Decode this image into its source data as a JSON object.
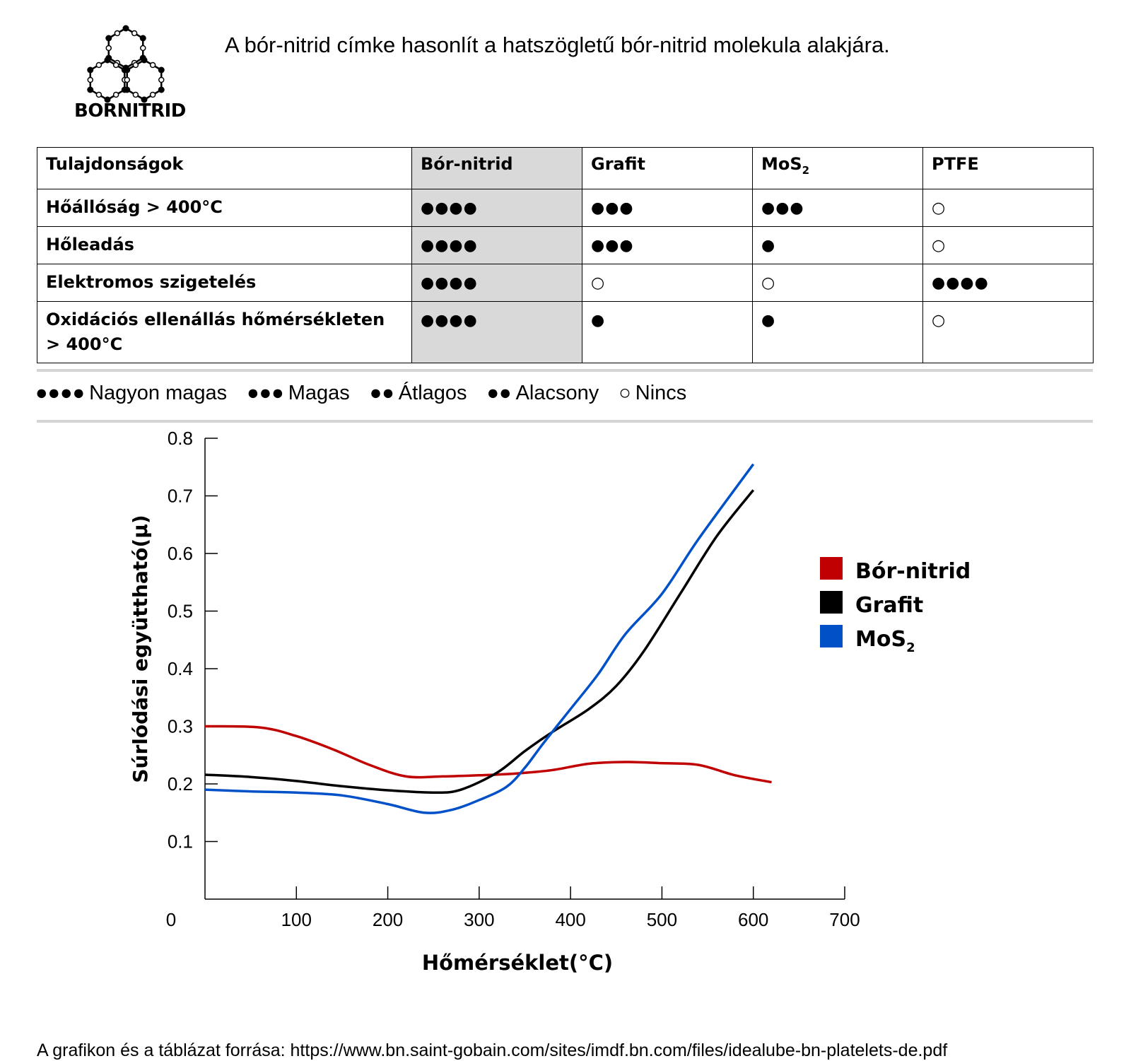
{
  "intro_text": "A bór-nitrid címke hasonlít a hatszögletű bór-nitrid molekula alakjára.",
  "logo_text": "BORNITRID",
  "table": {
    "headers": [
      "Tulajdonságok",
      "Bór-nitrid",
      "Grafit",
      "MoS",
      "PTFE"
    ],
    "header_sub": "2",
    "rows": [
      {
        "label": "Hőállóság > 400°C",
        "values": [
          "●●●●",
          "●●●",
          "●●●",
          "○"
        ]
      },
      {
        "label": "Hőleadás",
        "values": [
          "●●●●",
          "●●●",
          "●",
          "○"
        ]
      },
      {
        "label": "Elektromos szigetelés",
        "values": [
          "●●●●",
          "○",
          "○",
          "●●●●"
        ]
      },
      {
        "label": "Oxidációs ellenállás hőmérsékleten > 400°C",
        "values": [
          "●●●●",
          "●",
          "●",
          "○"
        ]
      }
    ]
  },
  "rating_legend": [
    {
      "symbol": "●●●●",
      "label": "Nagyon magas"
    },
    {
      "symbol": "●●●",
      "label": "Magas"
    },
    {
      "symbol": "●●",
      "label": "Átlagos"
    },
    {
      "symbol": "●●",
      "label": "Alacsony"
    },
    {
      "symbol": "○",
      "label": "Nincs"
    }
  ],
  "chart_data": {
    "type": "line",
    "xlabel": "Hőmérséklet(°C)",
    "ylabel": "Súrlódási együttható(μ)",
    "xlim": [
      0,
      700
    ],
    "ylim": [
      0,
      0.8
    ],
    "x_ticks": [
      0,
      100,
      200,
      300,
      400,
      500,
      600,
      700
    ],
    "y_ticks": [
      "0.1",
      "0.2",
      "0.3",
      "0.4",
      "0.5",
      "0.6",
      "0.7",
      "0.8"
    ],
    "legend_position": "right",
    "series": [
      {
        "name": "Bór-nitrid",
        "sub": "",
        "color": "#c00000",
        "x": [
          0,
          60,
          100,
          140,
          180,
          220,
          260,
          300,
          340,
          380,
          420,
          460,
          500,
          540,
          580,
          620
        ],
        "y": [
          0.3,
          0.298,
          0.283,
          0.26,
          0.233,
          0.213,
          0.213,
          0.215,
          0.218,
          0.224,
          0.235,
          0.238,
          0.236,
          0.233,
          0.215,
          0.203
        ]
      },
      {
        "name": "Grafit",
        "sub": "",
        "color": "#000000",
        "x": [
          0,
          50,
          100,
          150,
          200,
          250,
          280,
          320,
          350,
          380,
          420,
          450,
          480,
          520,
          560,
          600
        ],
        "y": [
          0.216,
          0.212,
          0.205,
          0.196,
          0.189,
          0.185,
          0.19,
          0.22,
          0.257,
          0.29,
          0.33,
          0.37,
          0.43,
          0.53,
          0.63,
          0.71
        ]
      },
      {
        "name": "MoS",
        "sub": "2",
        "color": "#0050c8",
        "x": [
          0,
          50,
          100,
          150,
          200,
          240,
          270,
          300,
          330,
          350,
          370,
          400,
          430,
          460,
          500,
          540,
          600
        ],
        "y": [
          0.19,
          0.187,
          0.185,
          0.18,
          0.165,
          0.15,
          0.155,
          0.172,
          0.195,
          0.228,
          0.27,
          0.33,
          0.39,
          0.46,
          0.53,
          0.625,
          0.755
        ]
      }
    ]
  },
  "source_text": "A grafikon és a táblázat forrása: https://www.bn.saint-gobain.com/sites/imdf.bn.com/files/idealube-bn-platelets-de.pdf"
}
